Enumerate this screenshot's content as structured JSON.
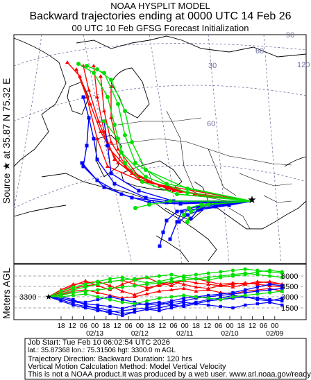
{
  "header": {
    "title": "NOAA HYSPLIT MODEL",
    "subtitle": "Backward trajectories ending at 0000 UTC 14 Feb 26",
    "run_info": "00 UTC 10 Feb    GFSG  Forecast Initialization"
  },
  "source": {
    "label": "Source ★  at   35.87 N   75.32 E",
    "lat": 35.87,
    "lon": 75.32,
    "height_m_agl": 3300
  },
  "map": {
    "graticule_labels": [
      "30",
      "60",
      "90",
      "120",
      "60"
    ],
    "colors": {
      "coast": "#000000",
      "border": "#000000",
      "graticule": "#6f6f9f"
    }
  },
  "vertical_panel": {
    "axis_label": "Meters AGL",
    "start_label": "3300",
    "ytick_labels": [
      "6000",
      "4500",
      "3000",
      "1500"
    ],
    "hour_labels": [
      "18",
      "12",
      "06",
      "00",
      "18",
      "12",
      "06",
      "00",
      "18",
      "12",
      "06",
      "00",
      "18",
      "12",
      "06",
      "00",
      "18",
      "12",
      "06",
      "00"
    ],
    "date_labels": [
      "02/13",
      "02/12",
      "02/11",
      "02/10",
      "02/09"
    ]
  },
  "series": {
    "colors": [
      "#ff0000",
      "#0000ff",
      "#00e000"
    ],
    "marker": "every 6 hours"
  },
  "footer": {
    "lines": [
      "Job Start: Tue Feb 10 06:02:54 UTC 2026",
      "lat.: 35.87368    lon.: 75.31506    hgt: 3300.0 m AGL",
      "Trajectory Direction: Backward      Duration: 120 hrs",
      "Vertical Motion Calculation Method: Model Vertical Velocity",
      "This is not a NOAA product.It was produced by a web user. www.arl.noaa.gov/ready"
    ]
  }
}
